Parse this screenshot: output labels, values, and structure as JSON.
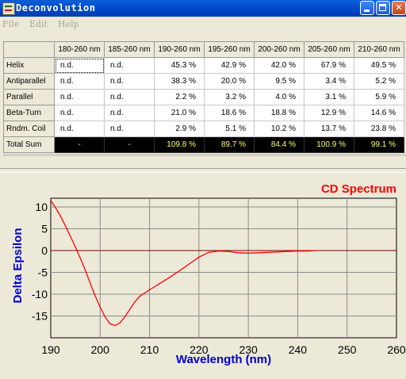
{
  "window": {
    "title": "Deconvolution"
  },
  "menu": [
    {
      "label": "File",
      "icon": "none"
    },
    {
      "label": "Edit"
    },
    {
      "label": "Help"
    }
  ],
  "table": {
    "columns": [
      "180-260 nm",
      "185-260 nm",
      "190-260 nm",
      "195-260 nm",
      "200-260 nm",
      "205-260 nm",
      "210-260 nm"
    ],
    "rows": [
      {
        "label": "Helix",
        "values": [
          "n.d.",
          "n.d.",
          "45.3 %",
          "42.9 %",
          "42.0 %",
          "67.9 %",
          "49.5 %"
        ]
      },
      {
        "label": "Antiparallel",
        "values": [
          "n.d.",
          "n.d.",
          "38.3 %",
          "20.0 %",
          "9.5 %",
          "3.4 %",
          "5.2 %"
        ]
      },
      {
        "label": "Parallel",
        "values": [
          "n.d.",
          "n.d.",
          "2.2 %",
          "3.2 %",
          "4.0 %",
          "3.1 %",
          "5.9 %"
        ]
      },
      {
        "label": "Beta-Turn",
        "values": [
          "n.d.",
          "n.d.",
          "21.0 %",
          "18.6 %",
          "18.8 %",
          "12.9 %",
          "14.6 %"
        ]
      },
      {
        "label": "Rndm. Coil",
        "values": [
          "n.d.",
          "n.d.",
          "2.9 %",
          "5.1 %",
          "10.2 %",
          "13.7 %",
          "23.8 %"
        ]
      }
    ],
    "total": {
      "label": "Total Sum",
      "values": [
        "-",
        "-",
        "109.8 %",
        "89.7 %",
        "84.4 %",
        "100.9 %",
        "99.1 %"
      ]
    }
  },
  "chart_data": {
    "type": "line",
    "title": "CD Spectrum",
    "xlabel": "Wavelength (nm)",
    "ylabel": "Delta Epsilon",
    "xlim": [
      190,
      260
    ],
    "ylim": [
      -20,
      12
    ],
    "xticks": [
      "190",
      "200",
      "210",
      "220",
      "230",
      "240",
      "250",
      "260"
    ],
    "yticks": [
      "10",
      "5",
      "0",
      "-5",
      "-10",
      "-15"
    ],
    "grid": true,
    "colors": {
      "line": "#ff0000",
      "title": "#ff0000",
      "axis_labels": "#0000cc",
      "zero_line": "#800000"
    },
    "series": [
      {
        "x": [
          190,
          191,
          192,
          193,
          194,
          195,
          196,
          197,
          198,
          199,
          200,
          201,
          202,
          203,
          204,
          205,
          206,
          207,
          208,
          210,
          212,
          214,
          216,
          218,
          220,
          222,
          224,
          226,
          228,
          230,
          232,
          234,
          236,
          238,
          240,
          242,
          244
        ],
        "y": [
          11.5,
          9.8,
          7.8,
          5.6,
          3.2,
          0.8,
          -1.8,
          -4.5,
          -7.5,
          -10.4,
          -13.0,
          -15.2,
          -16.8,
          -17.2,
          -16.6,
          -15.2,
          -13.5,
          -11.8,
          -10.5,
          -9.0,
          -7.6,
          -6.2,
          -4.7,
          -3.1,
          -1.5,
          -0.4,
          -0.1,
          -0.2,
          -0.5,
          -0.6,
          -0.5,
          -0.4,
          -0.3,
          -0.2,
          -0.1,
          -0.1,
          0.0
        ]
      }
    ]
  }
}
